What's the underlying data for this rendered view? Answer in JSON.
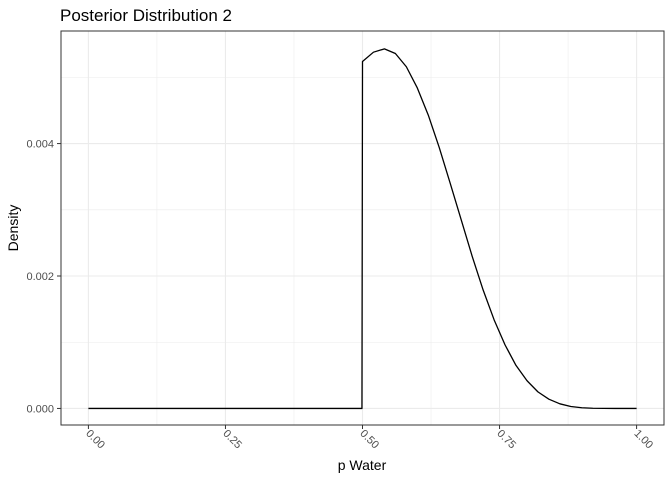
{
  "chart_data": {
    "type": "line",
    "title": "Posterior Distribution 2",
    "xlabel": "p Water",
    "ylabel": "Density",
    "xlim": [
      -0.05,
      1.05
    ],
    "ylim": [
      -0.00025,
      0.0057
    ],
    "x_ticks": [
      {
        "value": 0.0,
        "label": "0.00"
      },
      {
        "value": 0.25,
        "label": "0.25"
      },
      {
        "value": 0.5,
        "label": "0.50"
      },
      {
        "value": 0.75,
        "label": "0.75"
      },
      {
        "value": 1.0,
        "label": "1.00"
      }
    ],
    "y_ticks": [
      {
        "value": 0.0,
        "label": "0.000"
      },
      {
        "value": 0.002,
        "label": "0.002"
      },
      {
        "value": 0.004,
        "label": "0.004"
      }
    ],
    "x_tick_label_rotation_deg": 45,
    "grid": true,
    "theme": "black-and-white",
    "line_color": "#000000",
    "panel_border_color": "#333333",
    "grid_color": "#ebebeb",
    "series": [
      {
        "x": [
          0.0,
          0.1,
          0.2,
          0.3,
          0.4,
          0.499,
          0.5,
          0.52,
          0.54,
          0.56,
          0.58,
          0.6,
          0.62,
          0.64,
          0.66,
          0.68,
          0.7,
          0.72,
          0.74,
          0.76,
          0.78,
          0.8,
          0.82,
          0.84,
          0.86,
          0.88,
          0.9,
          0.92,
          0.94,
          0.96,
          0.98,
          1.0
        ],
        "y": [
          0,
          0,
          0,
          0,
          0,
          0,
          0.00524,
          0.00538,
          0.00543,
          0.00536,
          0.00516,
          0.00484,
          0.00443,
          0.00394,
          0.0034,
          0.00285,
          0.0023,
          0.00179,
          0.00134,
          0.00096,
          0.00065,
          0.00042,
          0.00025,
          0.00014,
          7e-05,
          3e-05,
          1e-05,
          3e-06,
          1e-06,
          1e-07,
          0,
          0
        ]
      }
    ]
  }
}
